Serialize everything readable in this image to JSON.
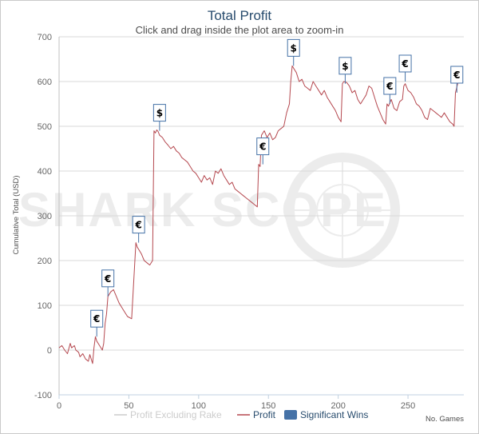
{
  "chart_data": {
    "type": "line",
    "title": "Total Profit",
    "subtitle": "Click and drag inside the plot area to zoom-in",
    "xlabel": "No. Games",
    "ylabel": "Cumulative Total (USD)",
    "xlim": [
      0,
      290
    ],
    "ylim": [
      -100,
      700
    ],
    "x_ticks": [
      0,
      50,
      100,
      150,
      200,
      250
    ],
    "y_ticks": [
      -100,
      0,
      100,
      200,
      300,
      400,
      500,
      600,
      700
    ],
    "legend": [
      "Profit Excluding Rake",
      "Profit",
      "Significant Wins"
    ],
    "colors": {
      "profit": "#b5484f",
      "flag_border": "#4572a7",
      "significant_wins": "#4572a7",
      "legend_disabled": "#cccccc",
      "grid": "#d8d8d8"
    },
    "watermark": "SHARK SCOPE",
    "series": [
      {
        "name": "Profit",
        "x": [
          0,
          2,
          4,
          6,
          8,
          9,
          11,
          12,
          14,
          15,
          17,
          19,
          21,
          22,
          24,
          25,
          26,
          27,
          29,
          31,
          32,
          33,
          34,
          35,
          37,
          39,
          41,
          43,
          46,
          49,
          52,
          55,
          56,
          57,
          59,
          61,
          63,
          65,
          67,
          68,
          69,
          70,
          71,
          72,
          74,
          76,
          78,
          80,
          82,
          84,
          86,
          88,
          90,
          92,
          94,
          96,
          98,
          100,
          102,
          104,
          106,
          108,
          110,
          112,
          114,
          116,
          118,
          120,
          122,
          124,
          126,
          128,
          130,
          132,
          134,
          136,
          138,
          140,
          142,
          143,
          144,
          145,
          147,
          149,
          151,
          153,
          155,
          157,
          159,
          161,
          163,
          165,
          166,
          167,
          168,
          170,
          172,
          174,
          176,
          178,
          180,
          182,
          184,
          186,
          188,
          190,
          192,
          194,
          196,
          198,
          200,
          202,
          203,
          204,
          206,
          208,
          210,
          212,
          214,
          216,
          218,
          220,
          222,
          224,
          226,
          228,
          230,
          232,
          234,
          235,
          236,
          238,
          240,
          242,
          244,
          246,
          247,
          248,
          250,
          252,
          254,
          256,
          258,
          260,
          262,
          264,
          266,
          268,
          270,
          272,
          274,
          276,
          278,
          280,
          282,
          283,
          284,
          286
        ],
        "y": [
          5,
          10,
          0,
          -8,
          15,
          5,
          10,
          0,
          -5,
          -15,
          -8,
          -20,
          -25,
          -10,
          -30,
          5,
          30,
          20,
          10,
          0,
          15,
          60,
          80,
          120,
          130,
          135,
          120,
          105,
          90,
          75,
          70,
          240,
          230,
          225,
          215,
          200,
          195,
          190,
          200,
          490,
          485,
          492,
          488,
          480,
          475,
          465,
          458,
          450,
          455,
          445,
          440,
          430,
          425,
          420,
          410,
          400,
          395,
          385,
          375,
          390,
          380,
          385,
          370,
          400,
          395,
          405,
          390,
          380,
          370,
          375,
          360,
          355,
          350,
          345,
          340,
          335,
          330,
          325,
          320,
          415,
          410,
          480,
          490,
          475,
          485,
          470,
          475,
          490,
          495,
          500,
          530,
          550,
          600,
          635,
          630,
          620,
          600,
          605,
          590,
          585,
          580,
          600,
          590,
          580,
          570,
          580,
          565,
          555,
          545,
          535,
          520,
          510,
          595,
          600,
          598,
          590,
          575,
          580,
          560,
          550,
          560,
          570,
          590,
          585,
          565,
          545,
          530,
          515,
          505,
          550,
          545,
          560,
          540,
          535,
          555,
          560,
          590,
          595,
          580,
          575,
          565,
          550,
          545,
          535,
          520,
          515,
          540,
          535,
          530,
          525,
          520,
          530,
          520,
          510,
          505,
          500,
          575,
          600
        ]
      }
    ],
    "significant_wins": [
      {
        "x": 27,
        "y": 30,
        "symbol": "€"
      },
      {
        "x": 35,
        "y": 120,
        "symbol": "€"
      },
      {
        "x": 57,
        "y": 240,
        "symbol": "€"
      },
      {
        "x": 72,
        "y": 490,
        "symbol": "$"
      },
      {
        "x": 146,
        "y": 415,
        "symbol": "€"
      },
      {
        "x": 168,
        "y": 635,
        "symbol": "$"
      },
      {
        "x": 205,
        "y": 595,
        "symbol": "$"
      },
      {
        "x": 237,
        "y": 550,
        "symbol": "€"
      },
      {
        "x": 248,
        "y": 600,
        "symbol": "€"
      },
      {
        "x": 285,
        "y": 575,
        "symbol": "€"
      }
    ]
  }
}
